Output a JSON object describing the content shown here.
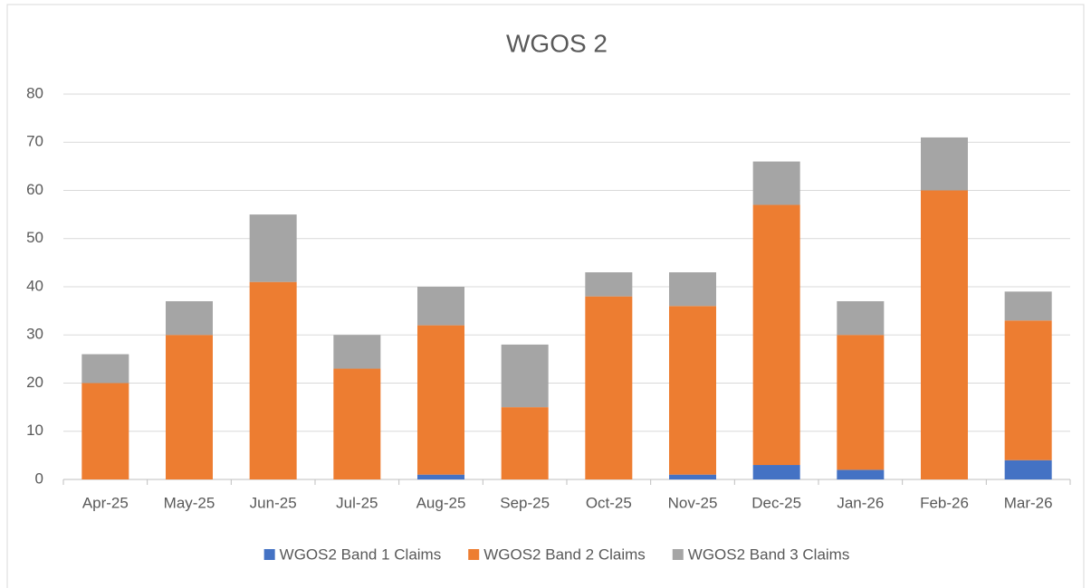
{
  "chart_data": {
    "type": "bar",
    "stacked": true,
    "title": "WGOS 2",
    "categories": [
      "Apr-25",
      "May-25",
      "Jun-25",
      "Jul-25",
      "Aug-25",
      "Sep-25",
      "Oct-25",
      "Nov-25",
      "Dec-25",
      "Jan-26",
      "Feb-26",
      "Mar-26"
    ],
    "series": [
      {
        "name": "WGOS2 Band 1 Claims",
        "color": "#4472c4",
        "values": [
          0,
          0,
          0,
          0,
          1,
          0,
          0,
          1,
          3,
          2,
          0,
          4
        ]
      },
      {
        "name": "WGOS2 Band 2 Claims",
        "color": "#ed7d31",
        "values": [
          20,
          30,
          41,
          23,
          31,
          15,
          38,
          35,
          54,
          28,
          60,
          29
        ]
      },
      {
        "name": "WGOS2 Band 3 Claims",
        "color": "#a5a5a5",
        "values": [
          6,
          7,
          14,
          7,
          8,
          13,
          5,
          7,
          9,
          7,
          11,
          6
        ]
      }
    ],
    "ylim": [
      0,
      80
    ],
    "yticks": [
      0,
      10,
      20,
      30,
      40,
      50,
      60,
      70,
      80
    ],
    "grid": true,
    "legend": "bottom"
  }
}
